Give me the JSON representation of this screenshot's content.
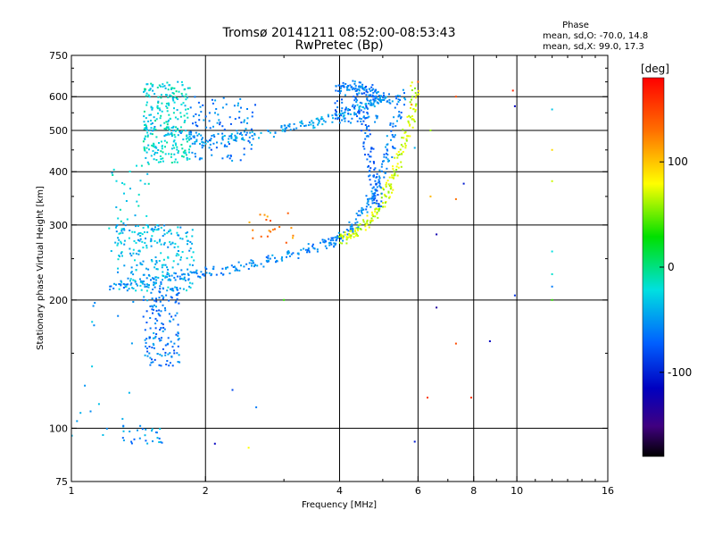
{
  "chart_data": {
    "type": "scatter",
    "title": "Tromsø 20141211 08:52:00-08:53:43",
    "subtitle": "RwPretec (Bp)",
    "stats": {
      "title": "Phase",
      "line_o": "mean, sd,O: -70.0, 14.8",
      "line_x": "mean, sd,X:  99.0, 17.3"
    },
    "xlabel": "Frequency [MHz]",
    "ylabel": "Stationary phase Virtual Height [km]",
    "xscale": "log",
    "yscale": "log",
    "xlim": [
      1,
      16
    ],
    "ylim": [
      75,
      750
    ],
    "x_ticks": [
      1,
      2,
      4,
      6,
      8,
      10,
      16
    ],
    "x_tick_labels": [
      "1",
      "2",
      "4",
      "6",
      "8",
      "10",
      "16"
    ],
    "y_ticks": [
      75,
      100,
      200,
      300,
      400,
      500,
      600,
      750
    ],
    "y_tick_labels": [
      "75",
      "100",
      "200",
      "300",
      "400",
      "500",
      "600",
      "750"
    ],
    "x_grid": [
      2,
      4,
      6,
      8,
      10
    ],
    "y_grid": [
      100,
      200,
      300,
      400,
      500,
      600
    ],
    "colorbar": {
      "label": "[deg]",
      "range": [
        -180,
        180
      ],
      "ticks": [
        100,
        0,
        -100
      ],
      "tick_labels": [
        "100",
        "0",
        "-100"
      ],
      "colors": [
        "#ff0000",
        "#ffa000",
        "#ffff00",
        "#00e000",
        "#00e0e0",
        "#0060ff",
        "#0000c0",
        "#400080",
        "#000000"
      ]
    },
    "series": [
      {
        "kind": "band",
        "phase": -55,
        "x": [
          1.2,
          1.4,
          1.6,
          1.8,
          2.0,
          2.3,
          2.6,
          3.0,
          3.4,
          3.8,
          4.0,
          4.3,
          4.6,
          4.8,
          5.0,
          5.2,
          5.4,
          5.5
        ],
        "y": [
          212,
          218,
          224,
          228,
          232,
          237,
          243,
          252,
          262,
          273,
          280,
          298,
          330,
          360,
          400,
          460,
          540,
          610
        ]
      },
      {
        "kind": "band",
        "phase": 70,
        "x": [
          4.0,
          4.2,
          4.5,
          4.8,
          5.0,
          5.2,
          5.4,
          5.6,
          5.8,
          5.95
        ],
        "y": [
          275,
          282,
          295,
          315,
          340,
          375,
          420,
          480,
          550,
          640
        ]
      },
      {
        "kind": "band",
        "phase": -45,
        "x": [
          1.5,
          1.8,
          2.0,
          2.3,
          2.7,
          3.1,
          3.5,
          3.9,
          4.3,
          4.7,
          5.1
        ],
        "y": [
          510,
          485,
          475,
          478,
          490,
          505,
          520,
          540,
          560,
          580,
          600
        ]
      },
      {
        "kind": "band",
        "phase": -55,
        "x": [
          4.0,
          4.3,
          4.6,
          4.9,
          5.2
        ],
        "y": [
          630,
          640,
          620,
          600,
          590
        ]
      },
      {
        "kind": "band",
        "phase": -70,
        "x": [
          4.5,
          4.6,
          4.7,
          4.8,
          4.9
        ],
        "y": [
          560,
          480,
          420,
          370,
          330
        ]
      },
      {
        "kind": "cluster",
        "phase": -20,
        "x_range": [
          1.45,
          1.85
        ],
        "y_range": [
          420,
          650
        ],
        "count": 260
      },
      {
        "kind": "cluster",
        "phase": -60,
        "x_range": [
          1.85,
          2.6
        ],
        "y_range": [
          420,
          600
        ],
        "count": 110
      },
      {
        "kind": "cluster",
        "phase": -35,
        "x_range": [
          1.25,
          1.9
        ],
        "y_range": [
          210,
          300
        ],
        "count": 230
      },
      {
        "kind": "cluster",
        "phase": -60,
        "x_range": [
          1.45,
          1.75
        ],
        "y_range": [
          140,
          215
        ],
        "count": 150
      },
      {
        "kind": "cluster",
        "phase": -25,
        "x_range": [
          1.2,
          1.5
        ],
        "y_range": [
          260,
          420
        ],
        "count": 40
      },
      {
        "kind": "cluster",
        "phase": -50,
        "x_range": [
          1.3,
          1.6
        ],
        "y_range": [
          92,
          102
        ],
        "count": 28
      },
      {
        "kind": "cluster",
        "phase": -65,
        "x_range": [
          3.9,
          4.9
        ],
        "y_range": [
          520,
          640
        ],
        "count": 90
      },
      {
        "kind": "cluster",
        "phase": -40,
        "x_range": [
          1.0,
          1.4
        ],
        "y_range": [
          95,
          200
        ],
        "count": 18
      },
      {
        "kind": "cluster",
        "phase": 120,
        "x_range": [
          2.5,
          3.2
        ],
        "y_range": [
          270,
          320
        ],
        "count": 20
      },
      {
        "kind": "points",
        "points": [
          [
            6.4,
            350,
            100
          ],
          [
            7.3,
            345,
            120
          ],
          [
            7.6,
            375,
            -100
          ],
          [
            7.3,
            600,
            140
          ],
          [
            9.8,
            620,
            160
          ],
          [
            9.9,
            570,
            -110
          ],
          [
            12.0,
            560,
            -30
          ],
          [
            12.0,
            450,
            90
          ],
          [
            12.0,
            380,
            70
          ],
          [
            12.0,
            260,
            -20
          ],
          [
            12.0,
            230,
            -15
          ],
          [
            12.0,
            215,
            -60
          ],
          [
            12.0,
            200,
            40
          ],
          [
            9.9,
            205,
            -90
          ],
          [
            6.6,
            285,
            -120
          ],
          [
            6.6,
            192,
            -130
          ],
          [
            7.3,
            158,
            140
          ],
          [
            8.7,
            160,
            -110
          ],
          [
            7.9,
            118,
            150
          ],
          [
            6.3,
            118,
            150
          ],
          [
            5.9,
            93,
            -100
          ],
          [
            2.1,
            92,
            -110
          ],
          [
            2.5,
            90,
            80
          ],
          [
            2.3,
            123,
            -80
          ],
          [
            2.6,
            112,
            -60
          ],
          [
            3.0,
            200,
            40
          ],
          [
            5.9,
            455,
            -40
          ],
          [
            6.0,
            650,
            130
          ],
          [
            5.8,
            575,
            110
          ],
          [
            6.4,
            500,
            60
          ]
        ]
      }
    ]
  }
}
